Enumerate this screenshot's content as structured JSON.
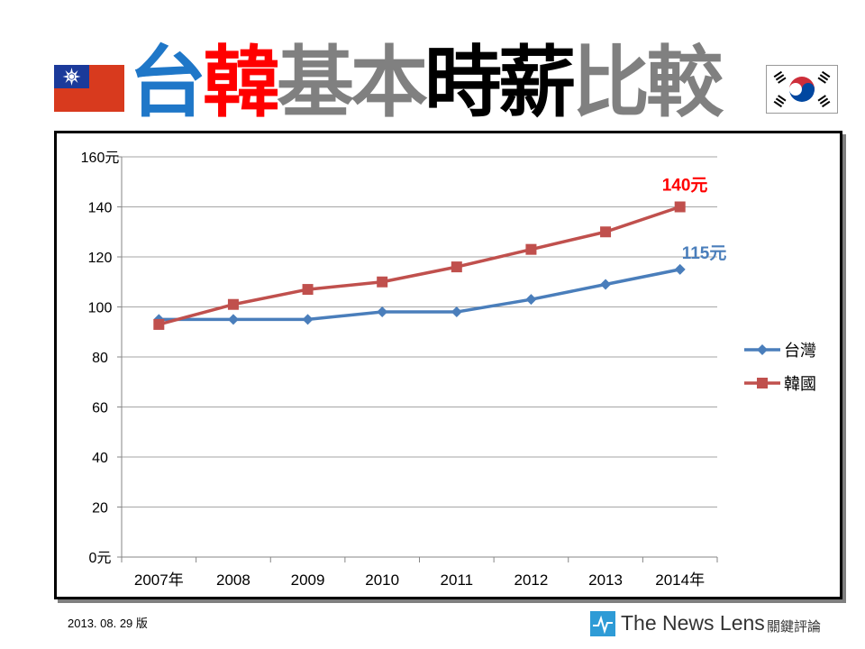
{
  "title": {
    "parts": [
      {
        "text": "台",
        "color": "#1f77c8"
      },
      {
        "text": "韓",
        "color": "#ff0000"
      },
      {
        "text": "基本",
        "color": "#808080"
      },
      {
        "text": "時薪",
        "color": "#000000"
      },
      {
        "text": "比較",
        "color": "#808080"
      }
    ]
  },
  "chart_data": {
    "type": "line",
    "categories": [
      "2007年",
      "2008",
      "2009",
      "2010",
      "2011",
      "2012",
      "2013",
      "2014年"
    ],
    "series": [
      {
        "name": "台灣",
        "color": "#4a7ebb",
        "marker": "diamond",
        "values": [
          95,
          95,
          95,
          98,
          98,
          103,
          109,
          115
        ]
      },
      {
        "name": "韓國",
        "color": "#c0504d",
        "marker": "square",
        "values": [
          93,
          101,
          107,
          110,
          116,
          123,
          130,
          140
        ]
      }
    ],
    "ylim": [
      0,
      160
    ],
    "yticks": [
      {
        "value": 0,
        "label": "0元"
      },
      {
        "value": 20,
        "label": "20"
      },
      {
        "value": 40,
        "label": "40"
      },
      {
        "value": 60,
        "label": "60"
      },
      {
        "value": 80,
        "label": "80"
      },
      {
        "value": 100,
        "label": "100"
      },
      {
        "value": 120,
        "label": "120"
      },
      {
        "value": 140,
        "label": "140"
      },
      {
        "value": 160,
        "label": "160元"
      }
    ],
    "annotations": [
      {
        "series": 1,
        "index": 7,
        "text": "140元",
        "color": "#ff0000"
      },
      {
        "series": 0,
        "index": 7,
        "text": "115元",
        "color": "#4a7ebb"
      }
    ],
    "grid": true,
    "legend": "right"
  },
  "footer": {
    "date": "2013. 08. 29 版",
    "logo_text": "The News Lens",
    "logo_sub": "關鍵評論",
    "logo_icon": "pulse-icon",
    "logo_color": "#2e9bd6"
  },
  "flags": {
    "left": "taiwan-flag-icon",
    "right": "korea-flag-icon"
  }
}
